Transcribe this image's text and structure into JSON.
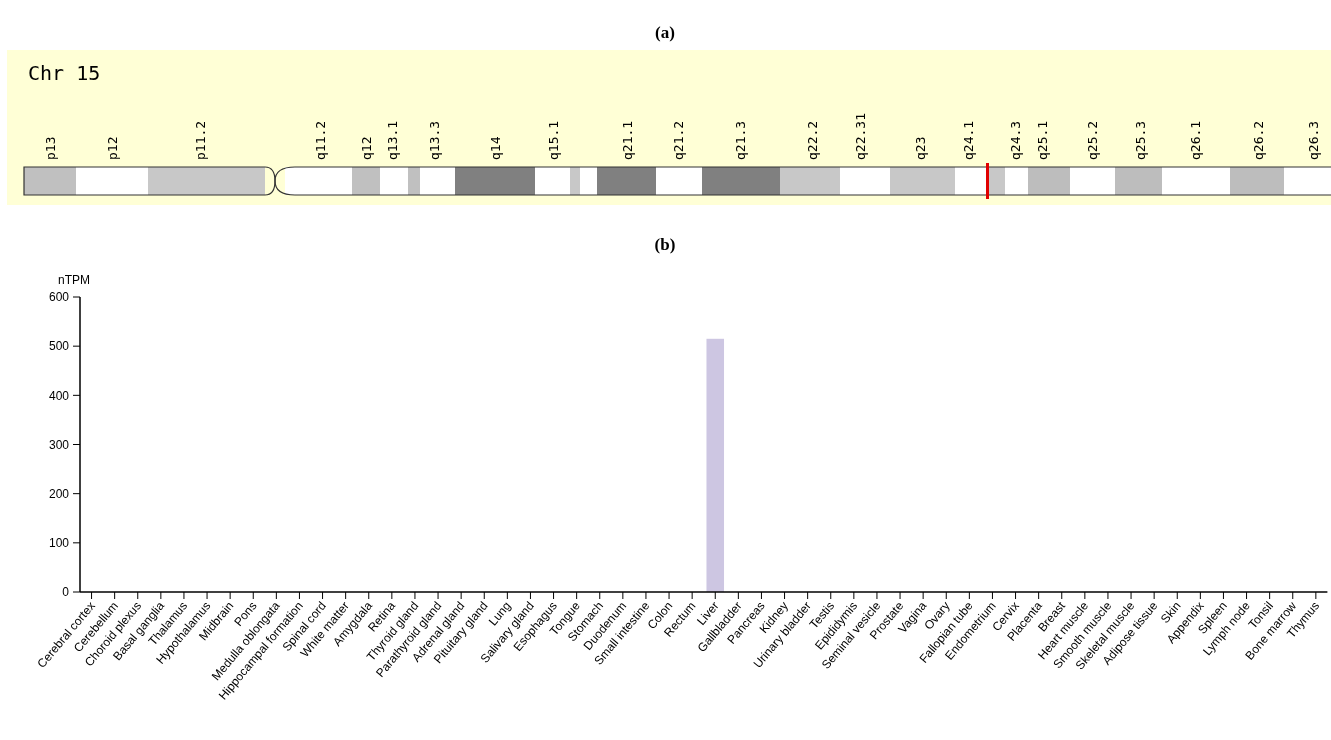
{
  "chart_data": [
    {
      "type": "other",
      "title": "(a)",
      "annotations": [
        "Chr 15",
        "p13",
        "p12",
        "p11.2",
        "q11.2",
        "q12",
        "q13.1",
        "q13.3",
        "q14",
        "q15.1",
        "q21.1",
        "q21.2",
        "q21.3",
        "q22.2",
        "q22.31",
        "q23",
        "q24.1",
        "q24.3",
        "q25.1",
        "q25.2",
        "q25.3",
        "q26.1",
        "q26.2",
        "q26.3"
      ]
    },
    {
      "type": "bar",
      "title": "(b)",
      "ylabel": "nTPM",
      "color": "#cdc6e2",
      "categories": [
        "Cerebral cortex",
        "Cerebellum",
        "Choroid plexus",
        "Basal ganglia",
        "Thalamus",
        "Hypothalamus",
        "Midbrain",
        "Pons",
        "Medulla oblongata",
        "Hippocampal formation",
        "Spinal cord",
        "White matter",
        "Amygdala",
        "Retina",
        "Thyroid gland",
        "Parathyroid gland",
        "Adrenal gland",
        "Pituitary gland",
        "Lung",
        "Salivary gland",
        "Esophagus",
        "Tongue",
        "Stomach",
        "Duodenum",
        "Small intestine",
        "Colon",
        "Rectum",
        "Liver",
        "Gallbladder",
        "Pancreas",
        "Kidney",
        "Urinary bladder",
        "Testis",
        "Epididymis",
        "Seminal vesicle",
        "Prostate",
        "Vagina",
        "Ovary",
        "Fallopian tube",
        "Endometrium",
        "Cervix",
        "Placenta",
        "Breast",
        "Heart muscle",
        "Smooth muscle",
        "Skeletal muscle",
        "Adipose tissue",
        "Skin",
        "Appendix",
        "Spleen",
        "Lymph node",
        "Tonsil",
        "Bone marrow",
        "Thymus"
      ],
      "values": [
        0,
        0,
        0,
        0,
        0,
        0,
        0,
        0,
        0,
        0,
        0,
        0,
        0,
        0,
        0,
        0,
        0,
        0,
        0,
        0,
        0,
        0,
        0,
        0,
        0,
        0,
        0,
        515,
        0,
        0,
        0,
        0,
        0,
        0,
        0,
        0,
        0,
        0,
        0,
        0,
        0,
        0,
        0,
        0,
        0,
        0,
        0,
        0,
        0,
        0,
        0,
        0,
        0,
        0
      ],
      "ylim": [
        0,
        600
      ],
      "yticks": [
        0,
        100,
        200,
        300,
        400,
        500,
        600
      ],
      "grid": false
    }
  ]
}
